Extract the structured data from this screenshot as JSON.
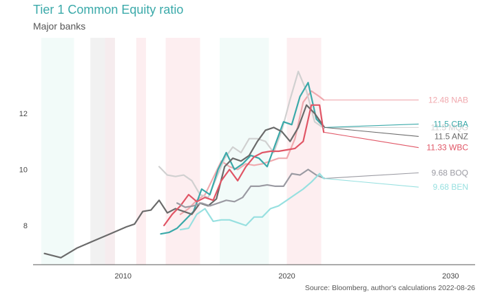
{
  "chart_data": {
    "type": "line",
    "title": "Tier 1 Common Equity ratio",
    "subtitle": "Major banks",
    "source": "Source: Bloomberg, author's calculations 2022-08-26",
    "xlabel": "",
    "ylabel": "",
    "xlim": [
      2004.5,
      2031.5
    ],
    "ylim": [
      6.6,
      14.7
    ],
    "xticks": [
      2010,
      2020,
      2030
    ],
    "yticks": [
      8,
      10,
      12
    ],
    "grid": false,
    "shaded_periods": [
      {
        "start": 2005.0,
        "end": 2007.0,
        "color": "#f2fbf9"
      },
      {
        "start": 2008.0,
        "end": 2009.5,
        "color": "#f1f1f1"
      },
      {
        "start": 2008.9,
        "end": 2009.5,
        "color": "#f6ecee"
      },
      {
        "start": 2010.8,
        "end": 2011.4,
        "color": "#fdeef0"
      },
      {
        "start": 2012.6,
        "end": 2014.7,
        "color": "#fdeef0"
      },
      {
        "start": 2015.9,
        "end": 2018.9,
        "color": "#f2fbf9"
      },
      {
        "start": 2020.0,
        "end": 2022.1,
        "color": "#fdeef0"
      }
    ],
    "series": [
      {
        "name": "NAB",
        "end_label": "12.48 NAB",
        "color": "#f0a9ae",
        "label_y": 12.48,
        "x": [
          2013.5,
          2014.0,
          2014.5,
          2015.0,
          2015.5,
          2016.0,
          2016.5,
          2017.0,
          2017.5,
          2018.0,
          2018.5,
          2019.0,
          2019.5,
          2020.0,
          2020.5,
          2021.0,
          2021.5,
          2022.0,
          2022.25
        ],
        "y": [
          8.4,
          8.6,
          8.9,
          9.1,
          9.7,
          10.3,
          10.1,
          10.0,
          10.2,
          10.15,
          10.2,
          10.3,
          10.4,
          10.4,
          11.1,
          12.4,
          12.8,
          12.6,
          12.48
        ]
      },
      {
        "name": "MQG",
        "end_label": "11.5 MQG",
        "color": "#d0d0d0",
        "label_y": 11.5,
        "x": [
          2012.2,
          2012.7,
          2013.2,
          2013.7,
          2014.2,
          2014.7,
          2015.2,
          2015.7,
          2016.2,
          2016.7,
          2017.2,
          2017.7,
          2018.2,
          2018.7,
          2019.2,
          2019.7,
          2020.2,
          2020.7,
          2021.2,
          2021.7,
          2022.2
        ],
        "y": [
          10.1,
          9.8,
          9.75,
          9.8,
          9.6,
          9.1,
          9.0,
          9.7,
          10.4,
          10.8,
          10.6,
          11.1,
          11.1,
          11.0,
          10.6,
          11.4,
          12.5,
          13.5,
          12.8,
          11.7,
          11.5
        ]
      },
      {
        "name": "CBA",
        "end_label": "11.5  CBA",
        "color": "#3aa9a9",
        "label_y": 11.62,
        "x": [
          2012.3,
          2012.8,
          2013.3,
          2013.8,
          2014.3,
          2014.8,
          2015.3,
          2015.8,
          2016.3,
          2016.8,
          2017.3,
          2017.8,
          2018.3,
          2018.8,
          2019.3,
          2019.8,
          2020.3,
          2020.8,
          2021.3,
          2021.8,
          2022.3
        ],
        "y": [
          7.7,
          7.75,
          7.9,
          8.2,
          8.5,
          9.3,
          9.1,
          10.0,
          10.6,
          10.0,
          10.2,
          10.5,
          10.4,
          10.1,
          10.9,
          11.7,
          11.6,
          12.6,
          13.1,
          11.8,
          11.5
        ]
      },
      {
        "name": "ANZ",
        "end_label": "11.5 ANZ",
        "color": "#6a6a6a",
        "label_y": 11.18,
        "x": [
          2005.2,
          2006.2,
          2007.2,
          2008.2,
          2009.2,
          2010.2,
          2010.7,
          2011.2,
          2011.7,
          2012.2,
          2012.7,
          2013.2,
          2013.7,
          2014.2,
          2014.7,
          2015.2,
          2015.7,
          2016.2,
          2016.7,
          2017.2,
          2017.7,
          2018.2,
          2018.7,
          2019.2,
          2019.7,
          2020.2,
          2020.7,
          2021.2,
          2021.7,
          2022.3
        ],
        "y": [
          7.0,
          6.85,
          7.2,
          7.45,
          7.7,
          7.95,
          8.05,
          8.5,
          8.55,
          8.9,
          8.45,
          8.6,
          8.5,
          8.4,
          8.8,
          8.7,
          8.95,
          10.1,
          10.4,
          10.3,
          10.5,
          11.0,
          11.4,
          11.5,
          11.35,
          11.0,
          11.5,
          12.3,
          12.0,
          11.5
        ]
      },
      {
        "name": "WBC",
        "end_label": "11.33 WBC",
        "color": "#e05565",
        "label_y": 10.78,
        "x": [
          2012.5,
          2013.0,
          2013.5,
          2014.0,
          2014.5,
          2015.0,
          2015.5,
          2016.0,
          2016.5,
          2017.0,
          2017.5,
          2018.0,
          2018.5,
          2019.0,
          2019.5,
          2020.0,
          2020.5,
          2021.0,
          2021.5,
          2022.0,
          2022.25
        ],
        "y": [
          8.0,
          8.4,
          8.7,
          9.1,
          8.85,
          9.0,
          8.9,
          9.6,
          10.0,
          9.6,
          10.1,
          10.45,
          10.6,
          10.65,
          10.65,
          10.7,
          10.75,
          11.0,
          12.3,
          12.3,
          11.33
        ]
      },
      {
        "name": "BOQ",
        "end_label": "9.68 BOQ",
        "color": "#9a9aa2",
        "label_y": 9.88,
        "x": [
          2013.3,
          2013.8,
          2014.3,
          2014.8,
          2015.3,
          2015.8,
          2016.3,
          2016.8,
          2017.3,
          2017.8,
          2018.3,
          2018.8,
          2019.3,
          2019.8,
          2020.3,
          2020.8,
          2021.3,
          2021.8,
          2022.3
        ],
        "y": [
          8.8,
          8.65,
          8.7,
          8.8,
          8.7,
          8.8,
          8.9,
          8.85,
          9.0,
          9.4,
          9.4,
          9.45,
          9.4,
          9.4,
          9.85,
          9.8,
          10.0,
          9.8,
          9.68
        ]
      },
      {
        "name": "BEN",
        "end_label": "9.68 BEN",
        "color": "#97e0e0",
        "label_y": 9.37,
        "x": [
          2013.5,
          2014.0,
          2014.5,
          2015.0,
          2015.5,
          2016.0,
          2016.5,
          2017.0,
          2017.5,
          2018.0,
          2018.5,
          2019.0,
          2019.5,
          2020.0,
          2020.5,
          2021.0,
          2021.5,
          2022.0,
          2022.25
        ],
        "y": [
          7.85,
          7.9,
          8.4,
          8.6,
          8.15,
          8.2,
          8.2,
          8.1,
          8.0,
          8.3,
          8.3,
          8.6,
          8.7,
          8.9,
          9.1,
          9.3,
          9.55,
          9.85,
          9.68
        ]
      }
    ]
  }
}
